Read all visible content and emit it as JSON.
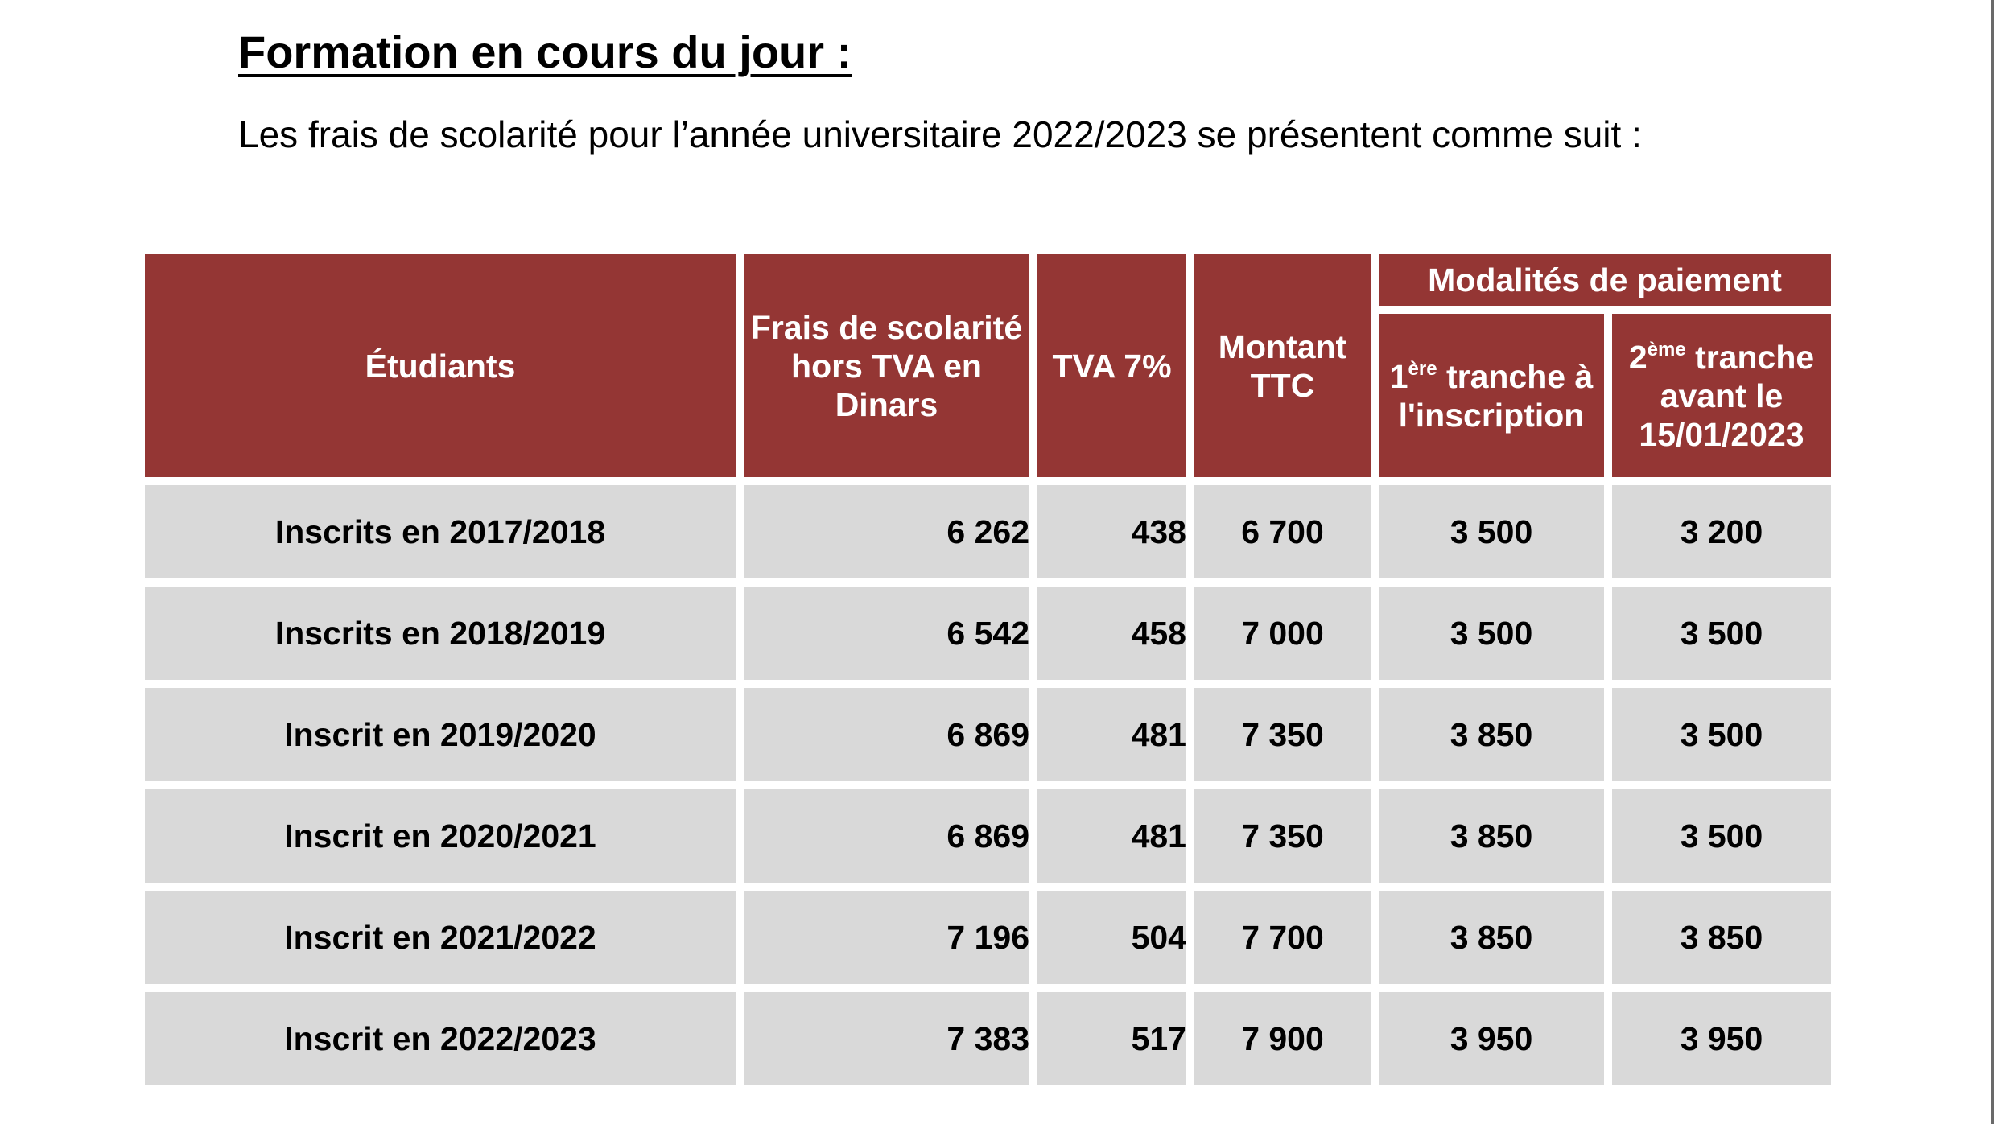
{
  "heading": "Formation en cours du jour :",
  "intro": "Les frais de scolarité pour l’année universitaire 2022/2023 se présentent comme suit :",
  "table": {
    "headers": {
      "students": "Étudiants",
      "fees": "Frais de scolarité hors TVA en Dinars",
      "tva": "TVA 7%",
      "total": "Montant TTC",
      "payment_group": "Modalités de paiement",
      "first_num": "1",
      "first_sup": "ère",
      "first_rest": " tranche à l'inscription",
      "second_num": "2",
      "second_sup": "ème",
      "second_rest": " tranche avant le 15/01/2023"
    },
    "rows": [
      {
        "students": "Inscrits en 2017/2018",
        "fees": "6 262",
        "tva": "438",
        "total": "6 700",
        "first": "3 500",
        "second": "3 200"
      },
      {
        "students": "Inscrits en 2018/2019",
        "fees": "6 542",
        "tva": "458",
        "total": "7 000",
        "first": "3 500",
        "second": "3 500"
      },
      {
        "students": "Inscrit en 2019/2020",
        "fees": "6 869",
        "tva": "481",
        "total": "7 350",
        "first": "3 850",
        "second": "3 500"
      },
      {
        "students": "Inscrit en 2020/2021",
        "fees": "6 869",
        "tva": "481",
        "total": "7 350",
        "first": "3 850",
        "second": "3 500"
      },
      {
        "students": "Inscrit en 2021/2022",
        "fees": "7 196",
        "tva": "504",
        "total": "7 700",
        "first": "3 850",
        "second": "3 850"
      },
      {
        "students": "Inscrit en 2022/2023",
        "fees": "7 383",
        "tva": "517",
        "total": "7 900",
        "first": "3 950",
        "second": "3 950"
      }
    ]
  }
}
